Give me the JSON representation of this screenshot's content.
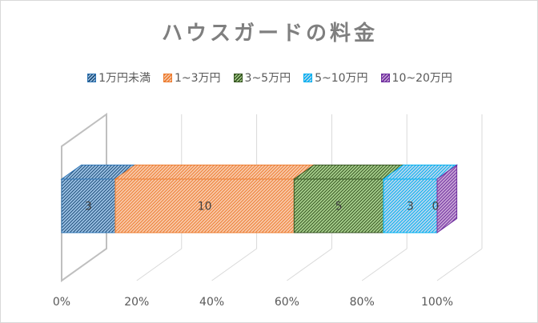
{
  "chart_data": {
    "type": "bar",
    "orientation": "horizontal",
    "stacking": "percent",
    "style": "3d",
    "title": "ハウスガードの料金",
    "xlabel": "",
    "ylabel": "",
    "categories": [
      ""
    ],
    "series": [
      {
        "name": "1万円未満",
        "values": [
          3
        ],
        "label": "3",
        "color": "#9dc3e6",
        "stroke": "#2e75b6",
        "pattern": "#1f4e79"
      },
      {
        "name": "1~3万円",
        "values": [
          10
        ],
        "label": "10",
        "color": "#f8cbad",
        "stroke": "#ed7d31",
        "pattern": "#ed7d31"
      },
      {
        "name": "3~5万円",
        "values": [
          5
        ],
        "label": "5",
        "color": "#a9d18e",
        "stroke": "#375623",
        "pattern": "#375623"
      },
      {
        "name": "5~10万円",
        "values": [
          3
        ],
        "label": "3",
        "color": "#bdd7ee",
        "stroke": "#00b0f0",
        "pattern": "#00b0f0"
      },
      {
        "name": "10~20万円",
        "values": [
          0
        ],
        "label": "0",
        "color": "#c9a6d6",
        "stroke": "#7030a0",
        "pattern": "#7030a0"
      }
    ],
    "xlim": [
      0,
      1
    ],
    "ticks": [
      "0%",
      "20%",
      "40%",
      "60%",
      "80%",
      "100%"
    ],
    "grid": true,
    "legend": "top"
  }
}
